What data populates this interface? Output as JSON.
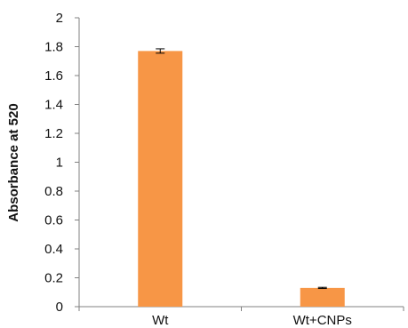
{
  "chart_data": {
    "type": "bar",
    "title": "",
    "xlabel": "",
    "ylabel": "Absorbance at 520",
    "categories": [
      "Wt",
      "Wt+CNPs"
    ],
    "values": [
      1.77,
      0.13
    ],
    "error": [
      0.015,
      0.004
    ],
    "ylim": [
      0,
      2
    ],
    "yticks": [
      0,
      0.2,
      0.4,
      0.6,
      0.8,
      1,
      1.2,
      1.4,
      1.6,
      1.8,
      2
    ],
    "grid": false,
    "legend": "none",
    "bar_color": "#F79646",
    "axis_color": "#808080",
    "error_bar_color": "#000000"
  }
}
